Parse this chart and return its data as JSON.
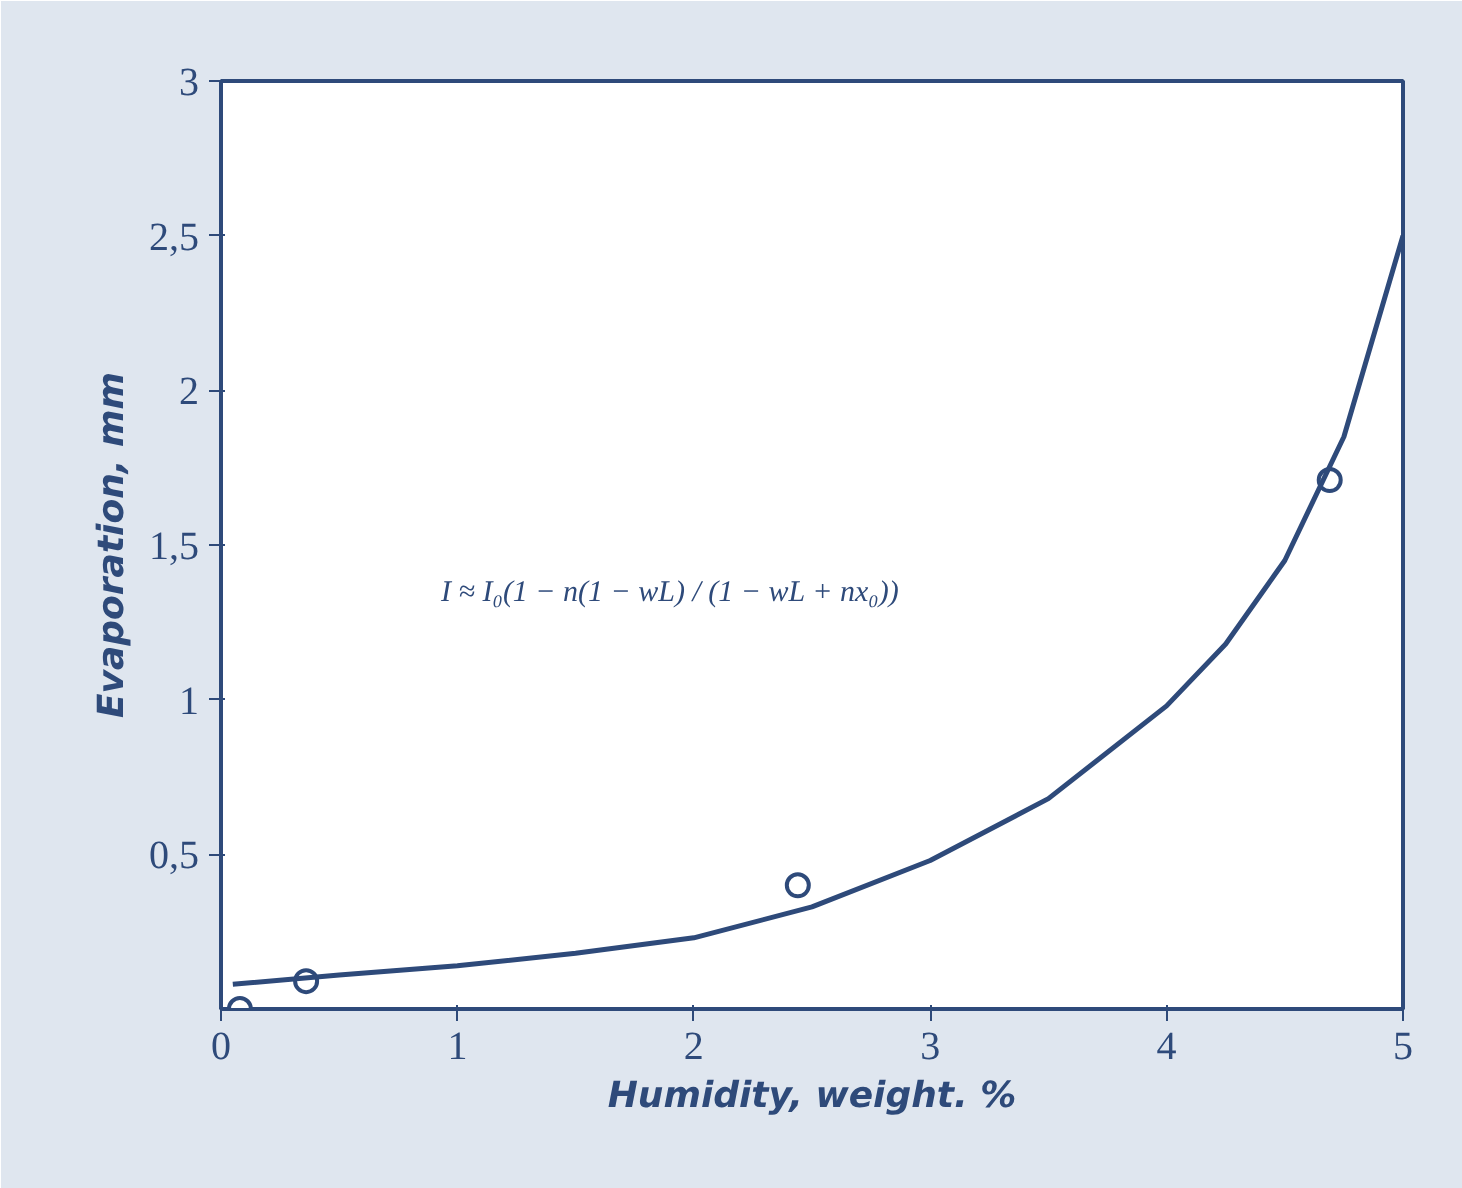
{
  "chart_data": {
    "type": "scatter",
    "xlabel": "Humidity, weight. %",
    "ylabel": "Evaporation, mm",
    "annotations": [
      "I ≈ I₀(1 − n(1 − wL) / (1 − wL + nx₀))"
    ],
    "series": [
      {
        "color": "#2e4a7a",
        "marker": "circle",
        "x": [
          0.08,
          0.36,
          2.44,
          4.69
        ],
        "values": [
          0.0,
          0.09,
          0.4,
          1.71
        ]
      },
      {
        "type": "line",
        "marker": "none",
        "color": "#2e4a7a",
        "x": [
          0.05,
          0.5,
          1,
          1.5,
          2,
          2.5,
          3,
          3.5,
          4,
          4.25,
          4.5,
          4.75,
          5
        ],
        "values": [
          0.08,
          0.11,
          0.14,
          0.18,
          0.23,
          0.33,
          0.48,
          0.68,
          0.98,
          1.18,
          1.45,
          1.85,
          2.5
        ]
      }
    ],
    "xlim": [
      0,
      5
    ],
    "ylim": [
      0,
      3
    ],
    "xticks": [
      0,
      1,
      2,
      3,
      4,
      5
    ],
    "yticks": [
      {
        "value": 0.5,
        "label": "0,5"
      },
      1,
      {
        "value": 1.5,
        "label": "1,5"
      },
      2,
      {
        "value": 2.5,
        "label": "2,5"
      },
      3
    ],
    "grid": false,
    "line_style": "solid"
  }
}
